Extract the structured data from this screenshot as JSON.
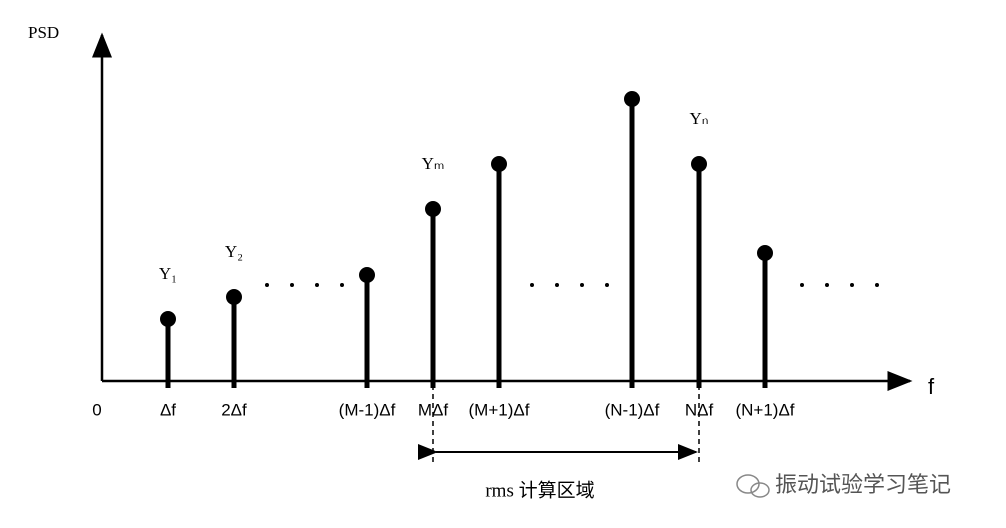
{
  "axes": {
    "y_label": "PSD",
    "x_label": "f",
    "origin": "0"
  },
  "stems": [
    {
      "tick": "Δf",
      "label": "Y₁"
    },
    {
      "tick": "2Δf",
      "label": "Y₂"
    },
    {
      "tick": "(M-1)Δf"
    },
    {
      "tick": "MΔf",
      "label": "Yₘ"
    },
    {
      "tick": "(M+1)Δf"
    },
    {
      "tick": "(N-1)Δf"
    },
    {
      "tick": "NΔf",
      "label": "Yₙ"
    },
    {
      "tick": "(N+1)Δf"
    }
  ],
  "range_label": "rms 计算区域",
  "watermark": "振动试验学习笔记"
}
